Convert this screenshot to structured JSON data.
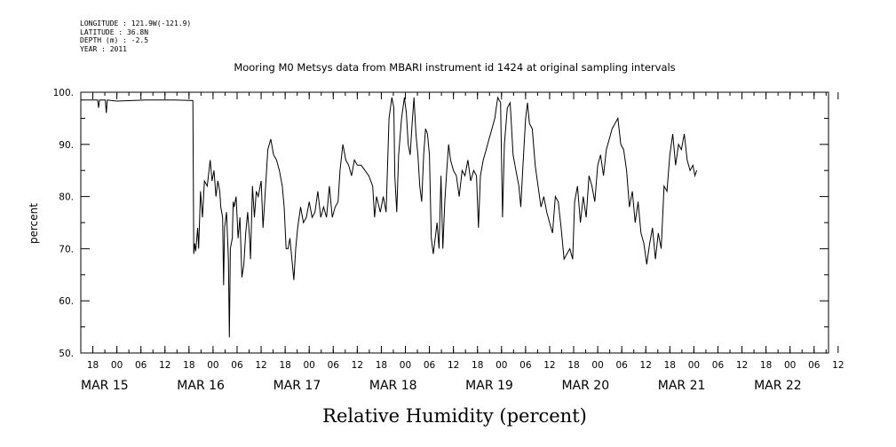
{
  "header": {
    "longitude": "LONGITUDE : 121.9W(-121.9)",
    "latitude": "LATITUDE : 36.8N",
    "depth": "DEPTH (m) : -2.5",
    "year": "YEAR : 2011"
  },
  "chart_data": {
    "type": "line",
    "title": "Mooring M0 Metsys data from MBARI instrument id 1424 at original sampling intervals",
    "xlabel": "Relative Humidity (percent)",
    "ylabel": "percent",
    "ylim": [
      50,
      100
    ],
    "xlim": [
      -0.375,
      7.4
    ],
    "yticks": [
      50,
      60,
      70,
      80,
      90,
      100
    ],
    "ytick_labels": [
      "50.",
      "60.",
      "70.",
      "80.",
      "90.",
      "100."
    ],
    "hour_ticks": [
      {
        "x": -0.25,
        "label": "18"
      },
      {
        "x": 0.0,
        "label": "00"
      },
      {
        "x": 0.25,
        "label": "06"
      },
      {
        "x": 0.5,
        "label": "12"
      },
      {
        "x": 0.75,
        "label": "18"
      },
      {
        "x": 1.0,
        "label": "00"
      },
      {
        "x": 1.25,
        "label": "06"
      },
      {
        "x": 1.5,
        "label": "12"
      },
      {
        "x": 1.75,
        "label": "18"
      },
      {
        "x": 2.0,
        "label": "00"
      },
      {
        "x": 2.25,
        "label": "06"
      },
      {
        "x": 2.5,
        "label": "12"
      },
      {
        "x": 2.75,
        "label": "18"
      },
      {
        "x": 3.0,
        "label": "00"
      },
      {
        "x": 3.25,
        "label": "06"
      },
      {
        "x": 3.5,
        "label": "12"
      },
      {
        "x": 3.75,
        "label": "18"
      },
      {
        "x": 4.0,
        "label": "00"
      },
      {
        "x": 4.25,
        "label": "06"
      },
      {
        "x": 4.5,
        "label": "12"
      },
      {
        "x": 4.75,
        "label": "18"
      },
      {
        "x": 5.0,
        "label": "00"
      },
      {
        "x": 5.25,
        "label": "06"
      },
      {
        "x": 5.5,
        "label": "12"
      },
      {
        "x": 5.75,
        "label": "18"
      },
      {
        "x": 6.0,
        "label": "00"
      },
      {
        "x": 6.25,
        "label": "06"
      },
      {
        "x": 6.5,
        "label": "12"
      },
      {
        "x": 6.75,
        "label": "18"
      },
      {
        "x": 7.0,
        "label": "00"
      },
      {
        "x": 7.25,
        "label": "06"
      },
      {
        "x": 7.5,
        "label": "12"
      }
    ],
    "date_labels": [
      {
        "x": -0.375,
        "label": "MAR 15"
      },
      {
        "x": 0.625,
        "label": "MAR 16"
      },
      {
        "x": 1.625,
        "label": "MAR 17"
      },
      {
        "x": 2.625,
        "label": "MAR 18"
      },
      {
        "x": 3.625,
        "label": "MAR 19"
      },
      {
        "x": 4.625,
        "label": "MAR 20"
      },
      {
        "x": 5.625,
        "label": "MAR 21"
      },
      {
        "x": 6.625,
        "label": "MAR 22"
      }
    ],
    "series": [
      {
        "color": "#000000",
        "points": [
          [
            -0.375,
            98.5
          ],
          [
            -0.2,
            98.5
          ],
          [
            -0.19,
            97
          ],
          [
            -0.18,
            98.5
          ],
          [
            -0.12,
            98.5
          ],
          [
            -0.11,
            96
          ],
          [
            -0.1,
            98.5
          ],
          [
            0.0,
            98.3
          ],
          [
            0.3,
            98.5
          ],
          [
            0.6,
            98.5
          ],
          [
            0.79,
            98.4
          ],
          [
            0.8,
            69
          ],
          [
            0.81,
            71
          ],
          [
            0.82,
            69.5
          ],
          [
            0.84,
            74
          ],
          [
            0.85,
            70
          ],
          [
            0.87,
            81
          ],
          [
            0.89,
            76
          ],
          [
            0.91,
            83
          ],
          [
            0.94,
            82
          ],
          [
            0.97,
            87
          ],
          [
            0.99,
            83
          ],
          [
            1.01,
            85
          ],
          [
            1.03,
            80
          ],
          [
            1.05,
            83
          ],
          [
            1.07,
            81
          ],
          [
            1.08,
            78
          ],
          [
            1.1,
            76
          ],
          [
            1.11,
            63
          ],
          [
            1.12,
            74
          ],
          [
            1.14,
            77
          ],
          [
            1.16,
            68
          ],
          [
            1.17,
            53
          ],
          [
            1.18,
            70
          ],
          [
            1.2,
            72
          ],
          [
            1.21,
            79
          ],
          [
            1.22,
            78
          ],
          [
            1.24,
            80
          ],
          [
            1.26,
            72
          ],
          [
            1.28,
            76
          ],
          [
            1.3,
            64.5
          ],
          [
            1.32,
            67
          ],
          [
            1.34,
            73
          ],
          [
            1.36,
            77
          ],
          [
            1.38,
            72
          ],
          [
            1.39,
            68
          ],
          [
            1.41,
            82
          ],
          [
            1.43,
            76
          ],
          [
            1.45,
            81
          ],
          [
            1.47,
            80
          ],
          [
            1.5,
            83
          ],
          [
            1.52,
            74
          ],
          [
            1.54,
            80
          ],
          [
            1.57,
            89
          ],
          [
            1.6,
            91
          ],
          [
            1.63,
            88
          ],
          [
            1.66,
            87
          ],
          [
            1.69,
            85
          ],
          [
            1.72,
            82
          ],
          [
            1.74,
            78
          ],
          [
            1.76,
            70
          ],
          [
            1.78,
            70
          ],
          [
            1.8,
            72
          ],
          [
            1.82,
            68
          ],
          [
            1.84,
            64
          ],
          [
            1.86,
            70
          ],
          [
            1.88,
            74
          ],
          [
            1.91,
            78
          ],
          [
            1.94,
            75
          ],
          [
            1.97,
            76
          ],
          [
            2.0,
            79
          ],
          [
            2.03,
            76
          ],
          [
            2.06,
            77
          ],
          [
            2.09,
            81
          ],
          [
            2.12,
            76
          ],
          [
            2.15,
            78
          ],
          [
            2.18,
            76
          ],
          [
            2.21,
            82
          ],
          [
            2.24,
            76
          ],
          [
            2.27,
            78
          ],
          [
            2.3,
            79
          ],
          [
            2.32,
            85
          ],
          [
            2.35,
            90
          ],
          [
            2.38,
            87
          ],
          [
            2.41,
            86
          ],
          [
            2.44,
            84
          ],
          [
            2.47,
            87
          ],
          [
            2.5,
            86
          ],
          [
            2.54,
            86
          ],
          [
            2.58,
            85
          ],
          [
            2.62,
            84
          ],
          [
            2.66,
            82
          ],
          [
            2.68,
            76
          ],
          [
            2.7,
            80
          ],
          [
            2.74,
            77
          ],
          [
            2.77,
            80
          ],
          [
            2.8,
            77
          ],
          [
            2.83,
            95
          ],
          [
            2.86,
            99
          ],
          [
            2.88,
            97
          ],
          [
            2.89,
            84
          ],
          [
            2.91,
            77
          ],
          [
            2.93,
            88
          ],
          [
            2.96,
            95
          ],
          [
            2.99,
            99
          ],
          [
            3.01,
            96
          ],
          [
            3.03,
            90
          ],
          [
            3.05,
            88
          ],
          [
            3.07,
            94
          ],
          [
            3.09,
            99
          ],
          [
            3.11,
            92
          ],
          [
            3.13,
            88
          ],
          [
            3.15,
            82
          ],
          [
            3.17,
            79
          ],
          [
            3.19,
            88
          ],
          [
            3.21,
            93
          ],
          [
            3.23,
            92
          ],
          [
            3.25,
            88
          ],
          [
            3.27,
            72
          ],
          [
            3.29,
            69
          ],
          [
            3.31,
            72
          ],
          [
            3.33,
            75
          ],
          [
            3.35,
            70
          ],
          [
            3.37,
            84
          ],
          [
            3.39,
            70
          ],
          [
            3.41,
            79
          ],
          [
            3.43,
            85
          ],
          [
            3.45,
            90
          ],
          [
            3.47,
            87
          ],
          [
            3.5,
            85
          ],
          [
            3.53,
            84
          ],
          [
            3.56,
            80
          ],
          [
            3.59,
            85
          ],
          [
            3.62,
            84
          ],
          [
            3.65,
            87
          ],
          [
            3.68,
            83
          ],
          [
            3.71,
            85
          ],
          [
            3.74,
            84
          ],
          [
            3.76,
            74
          ],
          [
            3.78,
            84
          ],
          [
            3.81,
            87
          ],
          [
            3.84,
            89
          ],
          [
            3.87,
            91
          ],
          [
            3.9,
            93
          ],
          [
            3.93,
            95
          ],
          [
            3.96,
            99
          ],
          [
            3.99,
            98
          ],
          [
            4.01,
            76
          ],
          [
            4.03,
            90
          ],
          [
            4.06,
            97
          ],
          [
            4.09,
            98
          ],
          [
            4.12,
            88
          ],
          [
            4.15,
            85
          ],
          [
            4.18,
            82
          ],
          [
            4.2,
            78
          ],
          [
            4.22,
            85
          ],
          [
            4.25,
            95
          ],
          [
            4.27,
            98
          ],
          [
            4.29,
            94
          ],
          [
            4.32,
            93
          ],
          [
            4.35,
            86
          ],
          [
            4.38,
            82
          ],
          [
            4.41,
            78
          ],
          [
            4.44,
            80
          ],
          [
            4.47,
            77
          ],
          [
            4.5,
            75
          ],
          [
            4.53,
            73
          ],
          [
            4.56,
            80
          ],
          [
            4.59,
            79
          ],
          [
            4.62,
            74
          ],
          [
            4.65,
            68
          ],
          [
            4.68,
            69
          ],
          [
            4.71,
            70
          ],
          [
            4.74,
            68
          ],
          [
            4.76,
            79
          ],
          [
            4.79,
            82
          ],
          [
            4.82,
            75
          ],
          [
            4.85,
            80
          ],
          [
            4.88,
            76
          ],
          [
            4.91,
            84
          ],
          [
            4.94,
            82
          ],
          [
            4.97,
            79
          ],
          [
            5.0,
            86
          ],
          [
            5.03,
            88
          ],
          [
            5.06,
            84
          ],
          [
            5.09,
            89
          ],
          [
            5.12,
            91
          ],
          [
            5.15,
            93
          ],
          [
            5.18,
            94
          ],
          [
            5.21,
            95
          ],
          [
            5.24,
            90
          ],
          [
            5.27,
            89
          ],
          [
            5.3,
            85
          ],
          [
            5.33,
            78
          ],
          [
            5.36,
            81
          ],
          [
            5.39,
            75
          ],
          [
            5.42,
            79
          ],
          [
            5.45,
            73
          ],
          [
            5.48,
            71
          ],
          [
            5.51,
            67
          ],
          [
            5.54,
            71
          ],
          [
            5.57,
            74
          ],
          [
            5.6,
            68
          ],
          [
            5.63,
            73
          ],
          [
            5.66,
            70
          ],
          [
            5.69,
            82
          ],
          [
            5.72,
            81
          ],
          [
            5.75,
            88
          ],
          [
            5.78,
            92
          ],
          [
            5.81,
            86
          ],
          [
            5.84,
            90
          ],
          [
            5.87,
            89
          ],
          [
            5.9,
            92
          ],
          [
            5.93,
            87
          ],
          [
            5.96,
            85
          ],
          [
            5.99,
            86
          ],
          [
            6.01,
            84
          ],
          [
            6.03,
            85
          ]
        ]
      }
    ]
  }
}
